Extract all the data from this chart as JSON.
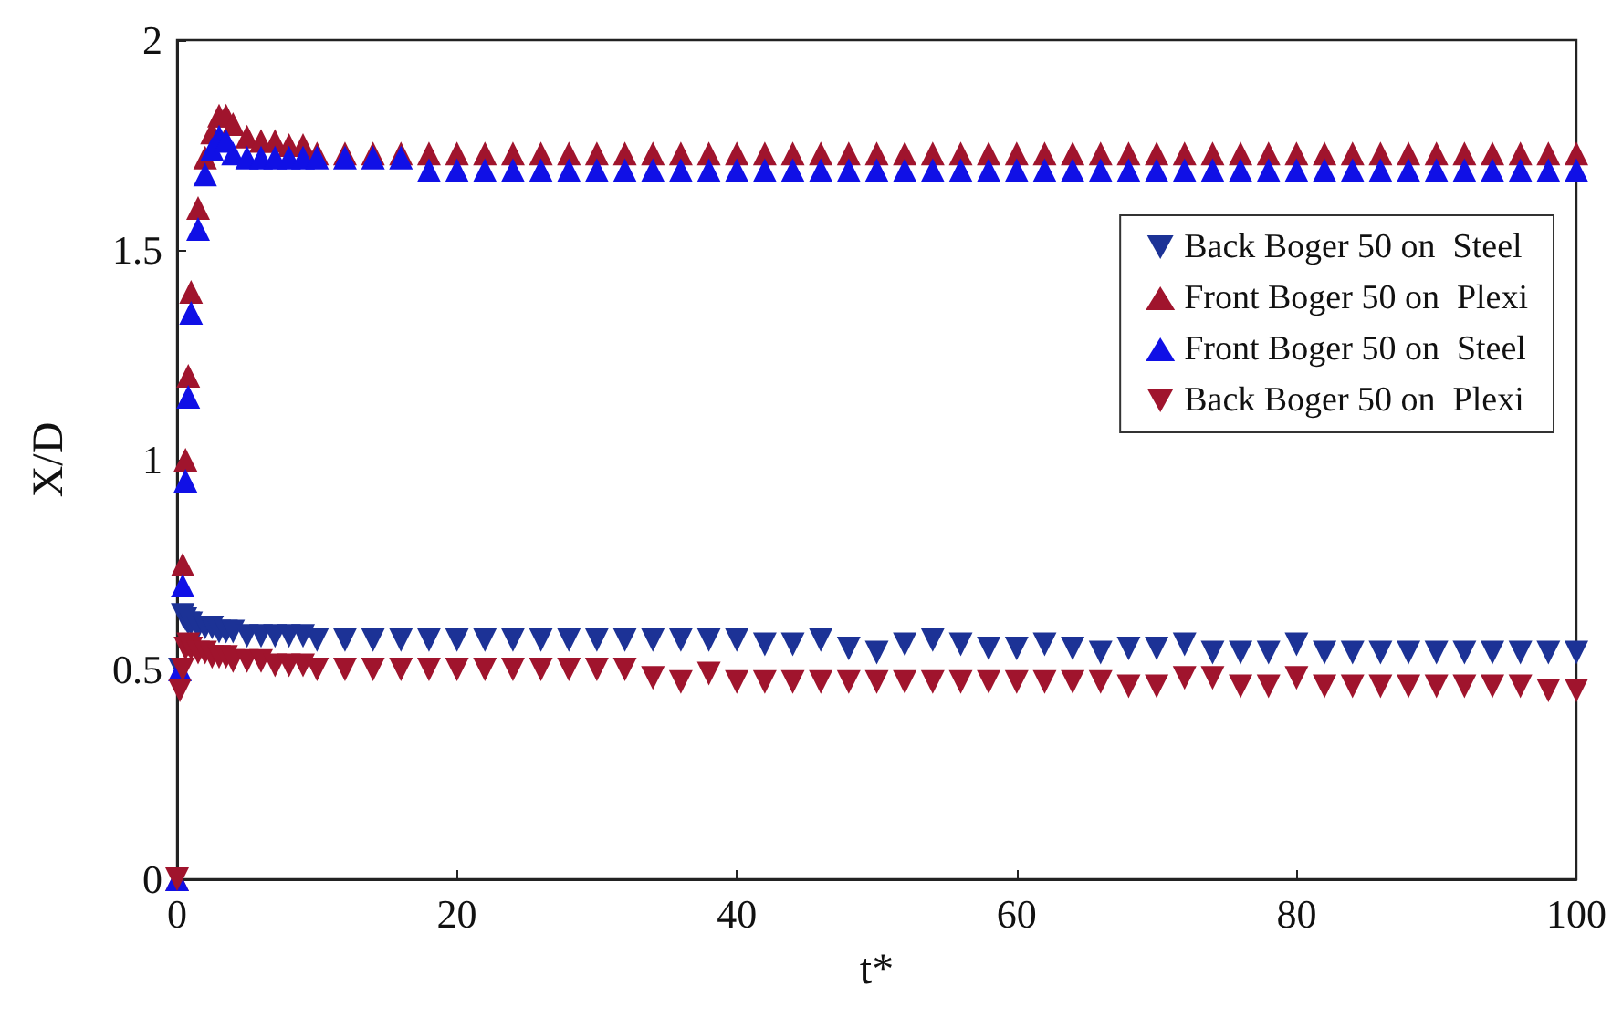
{
  "chart_data": {
    "type": "scatter",
    "xlabel": "t*",
    "ylabel": "X/D",
    "x": [
      0,
      0.2,
      0.4,
      0.6,
      0.8,
      1,
      1.5,
      2,
      2.5,
      3,
      3.5,
      4,
      5,
      6,
      7,
      8,
      9,
      10,
      12,
      14,
      16,
      18,
      20,
      22,
      24,
      26,
      28,
      30,
      32,
      34,
      36,
      38,
      40,
      42,
      44,
      46,
      48,
      50,
      52,
      54,
      56,
      58,
      60,
      62,
      64,
      66,
      68,
      70,
      72,
      74,
      76,
      78,
      80,
      82,
      84,
      86,
      88,
      90,
      92,
      94,
      96,
      98,
      100
    ],
    "xlim": [
      0,
      100
    ],
    "xticks": [
      0,
      20,
      40,
      60,
      80,
      100
    ],
    "ylim": [
      0,
      2
    ],
    "yticks": [
      0,
      0.5,
      1,
      1.5,
      2
    ],
    "grid": false,
    "legend": "right",
    "series": [
      {
        "name": "Back Boger 50 on  Steel",
        "color": "#1c3296",
        "marker": "triangle_down",
        "values": [
          null,
          0.5,
          0.63,
          0.62,
          0.61,
          0.61,
          0.6,
          0.6,
          0.6,
          0.59,
          0.59,
          0.59,
          0.58,
          0.58,
          0.58,
          0.58,
          0.58,
          0.57,
          0.57,
          0.57,
          0.57,
          0.57,
          0.57,
          0.57,
          0.57,
          0.57,
          0.57,
          0.57,
          0.57,
          0.57,
          0.57,
          0.57,
          0.57,
          0.56,
          0.56,
          0.57,
          0.55,
          0.54,
          0.56,
          0.57,
          0.56,
          0.55,
          0.55,
          0.56,
          0.55,
          0.54,
          0.55,
          0.55,
          0.56,
          0.54,
          0.54,
          0.54,
          0.56,
          0.54,
          0.54,
          0.54,
          0.54,
          0.54,
          0.54,
          0.54,
          0.54,
          0.54,
          0.54
        ]
      },
      {
        "name": "Front Boger 50 on  Plexi",
        "color": "#a0142d",
        "marker": "triangle",
        "values": [
          0,
          null,
          0.75,
          1.0,
          1.2,
          1.4,
          1.6,
          1.72,
          1.78,
          1.82,
          1.82,
          1.8,
          1.77,
          1.76,
          1.76,
          1.75,
          1.75,
          1.73,
          1.73,
          1.73,
          1.73,
          1.73,
          1.73,
          1.73,
          1.73,
          1.73,
          1.73,
          1.73,
          1.73,
          1.73,
          1.73,
          1.73,
          1.73,
          1.73,
          1.73,
          1.73,
          1.73,
          1.73,
          1.73,
          1.73,
          1.73,
          1.73,
          1.73,
          1.73,
          1.73,
          1.73,
          1.73,
          1.73,
          1.73,
          1.73,
          1.73,
          1.73,
          1.73,
          1.73,
          1.73,
          1.73,
          1.73,
          1.73,
          1.73,
          1.73,
          1.73,
          1.73,
          1.73
        ]
      },
      {
        "name": "Front Boger 50 on  Steel",
        "color": "#1010e6",
        "marker": "triangle",
        "values": [
          0,
          0.5,
          0.7,
          0.95,
          1.15,
          1.35,
          1.55,
          1.68,
          1.74,
          1.77,
          1.76,
          1.73,
          1.72,
          1.72,
          1.72,
          1.72,
          1.72,
          1.72,
          1.72,
          1.72,
          1.72,
          1.69,
          1.69,
          1.69,
          1.69,
          1.69,
          1.69,
          1.69,
          1.69,
          1.69,
          1.69,
          1.69,
          1.69,
          1.69,
          1.69,
          1.69,
          1.69,
          1.69,
          1.69,
          1.69,
          1.69,
          1.69,
          1.69,
          1.69,
          1.69,
          1.69,
          1.69,
          1.69,
          1.69,
          1.69,
          1.69,
          1.69,
          1.69,
          1.69,
          1.69,
          1.69,
          1.69,
          1.69,
          1.69,
          1.69,
          1.69,
          1.69,
          1.69
        ]
      },
      {
        "name": "Back Boger 50 on  Plexi",
        "color": "#a0142d",
        "marker": "triangle_down",
        "values": [
          0,
          0.45,
          0.5,
          0.55,
          0.56,
          0.55,
          0.54,
          0.54,
          0.53,
          0.53,
          0.53,
          0.52,
          0.52,
          0.52,
          0.51,
          0.51,
          0.51,
          0.5,
          0.5,
          0.5,
          0.5,
          0.5,
          0.5,
          0.5,
          0.5,
          0.5,
          0.5,
          0.5,
          0.5,
          0.48,
          0.47,
          0.49,
          0.47,
          0.47,
          0.47,
          0.47,
          0.47,
          0.47,
          0.47,
          0.47,
          0.47,
          0.47,
          0.47,
          0.47,
          0.47,
          0.47,
          0.46,
          0.46,
          0.48,
          0.48,
          0.46,
          0.46,
          0.48,
          0.46,
          0.46,
          0.46,
          0.46,
          0.46,
          0.46,
          0.46,
          0.46,
          0.45,
          0.45
        ]
      }
    ]
  }
}
